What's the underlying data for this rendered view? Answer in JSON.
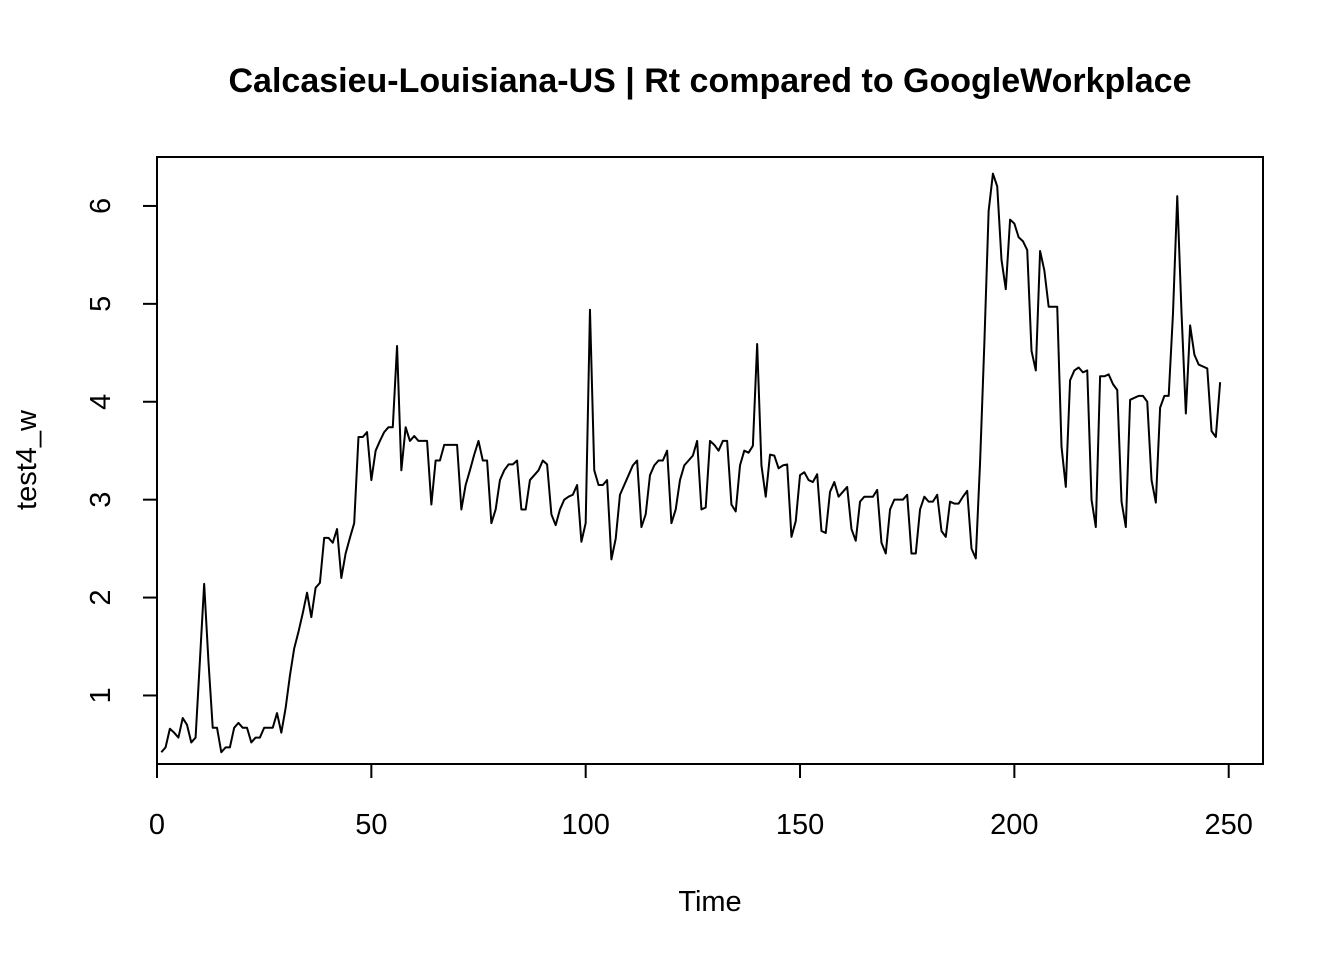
{
  "chart_data": {
    "type": "line",
    "title": "Calcasieu-Louisiana-US | Rt compared to GoogleWorkplace",
    "xlabel": "Time",
    "ylabel": "test4_w",
    "xlim": [
      0,
      258
    ],
    "ylim": [
      0.3,
      6.5
    ],
    "x_ticks": [
      0,
      50,
      100,
      150,
      200,
      250
    ],
    "y_ticks": [
      1,
      2,
      3,
      4,
      5,
      6
    ],
    "grid": false,
    "legend": "none",
    "line_color": "#000000",
    "series": [
      {
        "x_start": 1,
        "x_step": 1,
        "values": [
          0.42,
          0.47,
          0.66,
          0.62,
          0.57,
          0.77,
          0.7,
          0.52,
          0.57,
          1.35,
          2.14,
          1.35,
          0.67,
          0.67,
          0.42,
          0.47,
          0.47,
          0.67,
          0.72,
          0.67,
          0.67,
          0.52,
          0.57,
          0.57,
          0.67,
          0.67,
          0.67,
          0.82,
          0.62,
          0.87,
          1.2,
          1.48,
          1.65,
          1.84,
          2.05,
          1.8,
          2.1,
          2.15,
          2.61,
          2.61,
          2.56,
          2.7,
          2.2,
          2.45,
          2.61,
          2.76,
          3.64,
          3.64,
          3.69,
          3.2,
          3.5,
          3.6,
          3.69,
          3.74,
          3.74,
          4.57,
          3.3,
          3.74,
          3.6,
          3.65,
          3.6,
          3.6,
          3.6,
          2.95,
          3.4,
          3.4,
          3.56,
          3.56,
          3.56,
          3.56,
          2.9,
          3.15,
          3.3,
          3.46,
          3.6,
          3.4,
          3.4,
          2.76,
          2.9,
          3.2,
          3.3,
          3.36,
          3.36,
          3.4,
          2.9,
          2.9,
          3.2,
          3.25,
          3.3,
          3.4,
          3.36,
          2.85,
          2.74,
          2.9,
          3.0,
          3.03,
          3.05,
          3.15,
          2.57,
          2.76,
          4.94,
          3.3,
          3.15,
          3.15,
          3.2,
          2.39,
          2.6,
          3.05,
          3.15,
          3.25,
          3.35,
          3.4,
          2.72,
          2.85,
          3.25,
          3.35,
          3.4,
          3.4,
          3.5,
          2.76,
          2.9,
          3.2,
          3.35,
          3.4,
          3.45,
          3.6,
          2.9,
          2.92,
          3.6,
          3.56,
          3.5,
          3.6,
          3.6,
          2.95,
          2.88,
          3.35,
          3.5,
          3.48,
          3.55,
          4.59,
          3.35,
          3.03,
          3.46,
          3.45,
          3.32,
          3.35,
          3.36,
          2.62,
          2.78,
          3.25,
          3.28,
          3.2,
          3.18,
          3.26,
          2.68,
          2.66,
          3.08,
          3.18,
          3.03,
          3.08,
          3.13,
          2.7,
          2.58,
          2.98,
          3.03,
          3.03,
          3.03,
          3.1,
          2.56,
          2.45,
          2.9,
          3.0,
          3.0,
          3.0,
          3.05,
          2.45,
          2.45,
          2.9,
          3.03,
          2.98,
          2.98,
          3.05,
          2.68,
          2.62,
          2.98,
          2.96,
          2.96,
          3.03,
          3.09,
          2.5,
          2.4,
          3.38,
          4.6,
          5.95,
          6.33,
          6.2,
          5.45,
          5.15,
          5.86,
          5.82,
          5.68,
          5.64,
          5.55,
          4.52,
          4.32,
          5.54,
          5.34,
          4.97,
          4.97,
          4.97,
          3.54,
          3.13,
          4.22,
          4.32,
          4.35,
          4.3,
          4.32,
          3.0,
          2.72,
          4.26,
          4.26,
          4.28,
          4.18,
          4.12,
          2.98,
          2.72,
          4.02,
          4.04,
          4.06,
          4.06,
          4.0,
          3.2,
          2.97,
          3.94,
          4.06,
          4.06,
          4.9,
          6.1,
          4.9,
          3.88,
          4.78,
          4.48,
          4.38,
          4.36,
          4.34,
          3.7,
          3.64,
          4.2
        ]
      }
    ]
  }
}
